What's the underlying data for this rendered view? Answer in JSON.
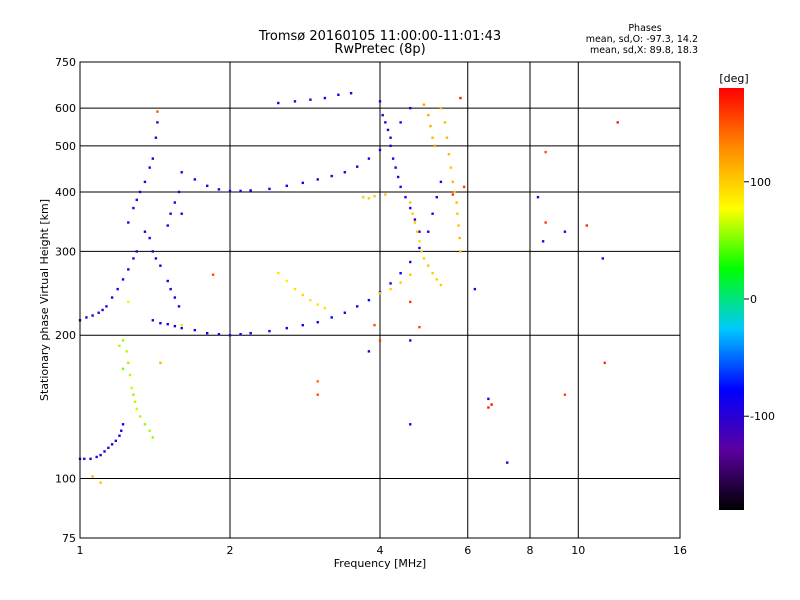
{
  "chart_data": {
    "type": "scatter",
    "title": "Tromsø 20160105 11:00:00-11:01:43",
    "subtitle": "RwPretec (8p)",
    "stats": {
      "heading": "Phases",
      "line_o": "mean, sd,O: -97.3, 14.2",
      "line_x": "mean, sd,X:  89.8, 18.3"
    },
    "xlabel": "Frequency [MHz]",
    "ylabel": "Stationary phase Virtual Height [km]",
    "x_scale": "log",
    "y_scale": "log",
    "xlim": [
      1,
      16
    ],
    "ylim": [
      75,
      750
    ],
    "x_ticks": [
      1,
      2,
      4,
      6,
      8,
      10,
      16
    ],
    "y_ticks": [
      75,
      100,
      200,
      300,
      400,
      500,
      600,
      750
    ],
    "grid": true,
    "colorbar": {
      "label": "[deg]",
      "range": [
        -180,
        180
      ],
      "ticks": [
        100,
        0,
        -100
      ],
      "colormap": [
        "#000000",
        "#5a00a0",
        "#0000ff",
        "#00c8ff",
        "#00ff00",
        "#ffff00",
        "#ff8c00",
        "#ff0000"
      ]
    },
    "series": [
      {
        "points": [
          [
            1.0,
            110,
            -100
          ],
          [
            1.02,
            110,
            -100
          ],
          [
            1.05,
            110,
            -100
          ],
          [
            1.08,
            111,
            -100
          ],
          [
            1.1,
            112,
            -100
          ],
          [
            1.12,
            114,
            -100
          ],
          [
            1.14,
            116,
            -100
          ],
          [
            1.16,
            118,
            -95
          ],
          [
            1.18,
            120,
            -95
          ],
          [
            1.2,
            123,
            -90
          ],
          [
            1.21,
            126,
            -90
          ],
          [
            1.22,
            130,
            -85
          ],
          [
            1.0,
            215,
            -100
          ],
          [
            1.03,
            218,
            -100
          ],
          [
            1.06,
            220,
            -100
          ],
          [
            1.09,
            223,
            -100
          ],
          [
            1.11,
            226,
            -95
          ],
          [
            1.13,
            230,
            -95
          ],
          [
            1.16,
            240,
            -95
          ],
          [
            1.19,
            250,
            -90
          ],
          [
            1.22,
            262,
            -95
          ],
          [
            1.25,
            275,
            -90
          ],
          [
            1.28,
            290,
            -95
          ],
          [
            1.3,
            300,
            -90
          ],
          [
            1.25,
            345,
            -100
          ],
          [
            1.28,
            370,
            -100
          ],
          [
            1.3,
            385,
            -100
          ],
          [
            1.32,
            400,
            -95
          ],
          [
            1.35,
            420,
            -100
          ],
          [
            1.38,
            450,
            -100
          ],
          [
            1.4,
            470,
            -95
          ],
          [
            1.42,
            520,
            -100
          ],
          [
            1.43,
            560,
            -100
          ],
          [
            1.4,
            215,
            -90
          ],
          [
            1.45,
            212,
            -90
          ],
          [
            1.5,
            211,
            -90
          ],
          [
            1.55,
            209,
            -90
          ],
          [
            1.6,
            207,
            -90
          ],
          [
            1.7,
            205,
            -90
          ],
          [
            1.8,
            202,
            -90
          ],
          [
            1.9,
            201,
            -90
          ],
          [
            2.0,
            200,
            -90
          ],
          [
            2.1,
            201,
            -90
          ],
          [
            2.2,
            202,
            -90
          ],
          [
            2.4,
            204,
            -85
          ],
          [
            2.6,
            207,
            -85
          ],
          [
            2.8,
            210,
            -85
          ],
          [
            3.0,
            213,
            -85
          ],
          [
            3.2,
            218,
            -80
          ],
          [
            3.4,
            223,
            -85
          ],
          [
            3.6,
            230,
            -85
          ],
          [
            3.8,
            237,
            -85
          ],
          [
            4.0,
            246,
            -85
          ],
          [
            4.2,
            257,
            -90
          ],
          [
            4.4,
            270,
            -90
          ],
          [
            4.6,
            285,
            -90
          ],
          [
            4.8,
            305,
            -90
          ],
          [
            5.0,
            330,
            -90
          ],
          [
            5.1,
            360,
            -95
          ],
          [
            5.2,
            390,
            -95
          ],
          [
            5.3,
            420,
            -95
          ],
          [
            1.6,
            440,
            -95
          ],
          [
            1.7,
            425,
            -95
          ],
          [
            1.8,
            412,
            -95
          ],
          [
            1.9,
            405,
            -95
          ],
          [
            2.0,
            402,
            -95
          ],
          [
            2.1,
            402,
            -95
          ],
          [
            2.2,
            403,
            -95
          ],
          [
            2.4,
            406,
            -95
          ],
          [
            2.6,
            412,
            -90
          ],
          [
            2.8,
            418,
            -90
          ],
          [
            3.0,
            425,
            -90
          ],
          [
            3.2,
            432,
            -90
          ],
          [
            3.4,
            440,
            -90
          ],
          [
            3.6,
            452,
            -90
          ],
          [
            3.8,
            470,
            -90
          ],
          [
            4.0,
            490,
            -90
          ],
          [
            4.2,
            520,
            -90
          ],
          [
            4.4,
            560,
            -95
          ],
          [
            4.6,
            600,
            -95
          ],
          [
            2.5,
            615,
            -95
          ],
          [
            2.7,
            620,
            -95
          ],
          [
            2.9,
            625,
            -95
          ],
          [
            3.1,
            630,
            -95
          ],
          [
            3.3,
            640,
            -100
          ],
          [
            3.5,
            645,
            -95
          ],
          [
            4.0,
            620,
            -100
          ],
          [
            4.05,
            580,
            -100
          ],
          [
            4.1,
            560,
            -100
          ],
          [
            4.15,
            540,
            -100
          ],
          [
            4.2,
            500,
            -100
          ],
          [
            4.25,
            470,
            -100
          ],
          [
            4.3,
            450,
            -100
          ],
          [
            4.35,
            430,
            -100
          ],
          [
            4.4,
            410,
            -100
          ],
          [
            4.5,
            390,
            -100
          ],
          [
            4.6,
            370,
            -100
          ],
          [
            4.7,
            350,
            -100
          ],
          [
            4.8,
            330,
            -100
          ],
          [
            1.35,
            330,
            -90
          ],
          [
            1.38,
            320,
            -90
          ],
          [
            1.4,
            300,
            -90
          ],
          [
            1.42,
            290,
            -90
          ],
          [
            1.45,
            280,
            -90
          ],
          [
            1.5,
            260,
            -90
          ],
          [
            1.52,
            250,
            -90
          ],
          [
            1.55,
            240,
            -90
          ],
          [
            1.58,
            230,
            -90
          ],
          [
            1.5,
            340,
            -95
          ],
          [
            1.52,
            360,
            -95
          ],
          [
            1.55,
            380,
            -95
          ],
          [
            1.58,
            400,
            -95
          ],
          [
            1.6,
            360,
            -95
          ],
          [
            6.2,
            250,
            -100
          ],
          [
            6.6,
            147,
            -100
          ],
          [
            7.2,
            108,
            -100
          ],
          [
            8.3,
            390,
            -100
          ],
          [
            8.5,
            315,
            -100
          ],
          [
            9.4,
            330,
            -100
          ],
          [
            11.2,
            290,
            -100
          ],
          [
            4.6,
            130,
            -100
          ],
          [
            3.8,
            185,
            -100
          ],
          [
            4.6,
            195,
            -100
          ]
        ]
      },
      {
        "points": [
          [
            1.22,
            195,
            55
          ],
          [
            1.24,
            185,
            60
          ],
          [
            1.25,
            175,
            55
          ],
          [
            1.26,
            165,
            60
          ],
          [
            1.27,
            155,
            65
          ],
          [
            1.28,
            150,
            55
          ],
          [
            1.29,
            145,
            60
          ],
          [
            1.3,
            140,
            65
          ],
          [
            1.32,
            135,
            60
          ],
          [
            1.35,
            130,
            55
          ],
          [
            1.38,
            126,
            60
          ],
          [
            1.4,
            122,
            55
          ],
          [
            1.2,
            190,
            60
          ],
          [
            1.22,
            170,
            50
          ],
          [
            2.5,
            270,
            90
          ],
          [
            2.6,
            260,
            85
          ],
          [
            2.7,
            250,
            90
          ],
          [
            2.8,
            243,
            95
          ],
          [
            2.9,
            237,
            90
          ],
          [
            3.0,
            232,
            90
          ],
          [
            3.1,
            228,
            90
          ],
          [
            4.6,
            380,
            105
          ],
          [
            4.65,
            360,
            100
          ],
          [
            4.7,
            345,
            100
          ],
          [
            4.75,
            330,
            100
          ],
          [
            4.8,
            315,
            95
          ],
          [
            4.85,
            300,
            100
          ],
          [
            4.9,
            290,
            100
          ],
          [
            5.0,
            280,
            105
          ],
          [
            5.1,
            270,
            100
          ],
          [
            5.2,
            262,
            100
          ],
          [
            5.3,
            255,
            100
          ],
          [
            4.0,
            245,
            100
          ],
          [
            4.2,
            250,
            100
          ],
          [
            4.4,
            258,
            100
          ],
          [
            4.6,
            268,
            100
          ],
          [
            5.3,
            600,
            110
          ],
          [
            5.4,
            560,
            105
          ],
          [
            5.45,
            520,
            110
          ],
          [
            5.5,
            480,
            110
          ],
          [
            5.55,
            450,
            105
          ],
          [
            5.6,
            420,
            110
          ],
          [
            5.65,
            400,
            105
          ],
          [
            5.7,
            380,
            110
          ],
          [
            5.72,
            360,
            105
          ],
          [
            5.75,
            340,
            105
          ],
          [
            5.78,
            320,
            110
          ],
          [
            5.8,
            300,
            105
          ],
          [
            4.9,
            610,
            120
          ],
          [
            5.0,
            580,
            115
          ],
          [
            5.05,
            550,
            115
          ],
          [
            5.1,
            520,
            110
          ],
          [
            5.15,
            500,
            115
          ],
          [
            3.7,
            390,
            100
          ],
          [
            3.8,
            388,
            100
          ],
          [
            3.9,
            392,
            100
          ],
          [
            4.1,
            395,
            105
          ],
          [
            1.06,
            101,
            110
          ],
          [
            1.1,
            98,
            105
          ],
          [
            1.25,
            235,
            85
          ],
          [
            1.45,
            175,
            110
          ],
          [
            1.6,
            210,
            90
          ]
        ]
      },
      {
        "points": [
          [
            1.43,
            590,
            150
          ],
          [
            1.85,
            268,
            150
          ],
          [
            3.0,
            160,
            140
          ],
          [
            3.0,
            150,
            150
          ],
          [
            5.6,
            395,
            160
          ],
          [
            5.8,
            630,
            170
          ],
          [
            5.9,
            410,
            155
          ],
          [
            4.0,
            195,
            160
          ],
          [
            6.6,
            141,
            170
          ],
          [
            6.7,
            143,
            175
          ],
          [
            8.6,
            485,
            150
          ],
          [
            8.6,
            345,
            160
          ],
          [
            9.4,
            150,
            155
          ],
          [
            10.4,
            340,
            165
          ],
          [
            11.3,
            175,
            160
          ],
          [
            12.0,
            560,
            170
          ],
          [
            4.6,
            235,
            160
          ],
          [
            4.8,
            208,
            155
          ],
          [
            3.9,
            210,
            150
          ]
        ]
      }
    ]
  }
}
